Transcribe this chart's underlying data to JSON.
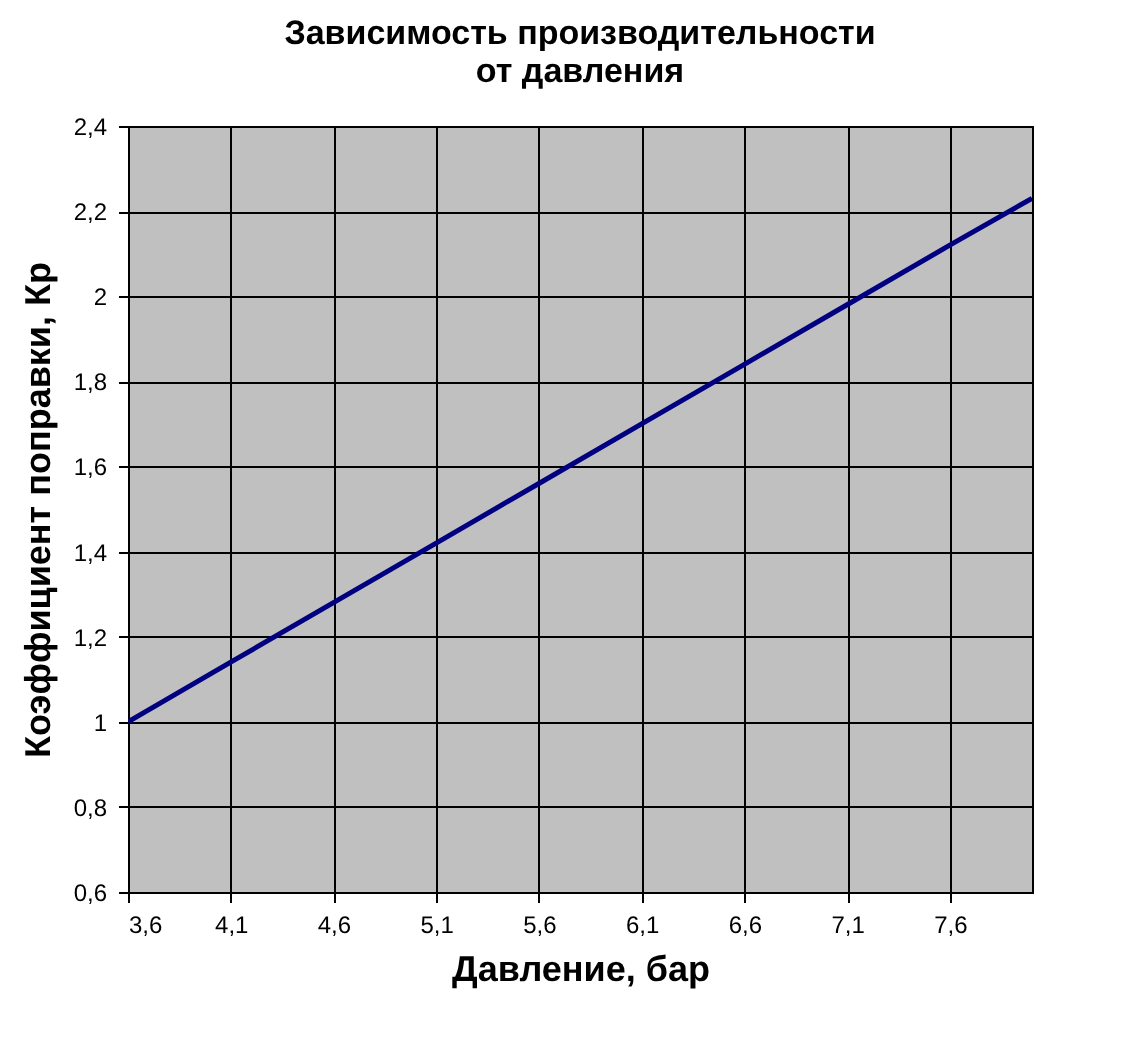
{
  "chart_data": {
    "type": "line",
    "title": [
      "Зависимость производительности",
      "от давления"
    ],
    "xlabel": "Давление, бар",
    "ylabel": "Коэффициент поправки, Кр",
    "x": [
      3.6,
      4.1,
      4.6,
      5.1,
      5.6,
      6.1,
      6.6,
      7.1,
      7.6,
      8.0
    ],
    "series": [
      {
        "color": "#000080",
        "values": [
          1.0,
          1.14,
          1.28,
          1.42,
          1.56,
          1.7,
          1.84,
          1.98,
          2.12,
          2.23
        ]
      }
    ],
    "xlim": [
      3.6,
      8.0
    ],
    "ylim": [
      0.6,
      2.4
    ],
    "xticks": [
      {
        "value": 3.6,
        "label": "3,6"
      },
      {
        "value": 4.1,
        "label": "4,1"
      },
      {
        "value": 4.6,
        "label": "4,6"
      },
      {
        "value": 5.1,
        "label": "5,1"
      },
      {
        "value": 5.6,
        "label": "5,6"
      },
      {
        "value": 6.1,
        "label": "6,1"
      },
      {
        "value": 6.6,
        "label": "6,6"
      },
      {
        "value": 7.1,
        "label": "7,1"
      },
      {
        "value": 7.6,
        "label": "7,6"
      }
    ],
    "yticks": [
      {
        "value": 0.6,
        "label": "0,6"
      },
      {
        "value": 0.8,
        "label": "0,8"
      },
      1,
      {
        "value": 1.2,
        "label": "1,2"
      },
      {
        "value": 1.4,
        "label": "1,4"
      },
      {
        "value": 1.6,
        "label": "1,6"
      },
      {
        "value": 1.8,
        "label": "1,8"
      },
      2,
      {
        "value": 2.2,
        "label": "2,2"
      },
      {
        "value": 2.4,
        "label": "2,4"
      }
    ],
    "grid": true,
    "marker": "none",
    "line_style": "solid",
    "legend": false
  }
}
